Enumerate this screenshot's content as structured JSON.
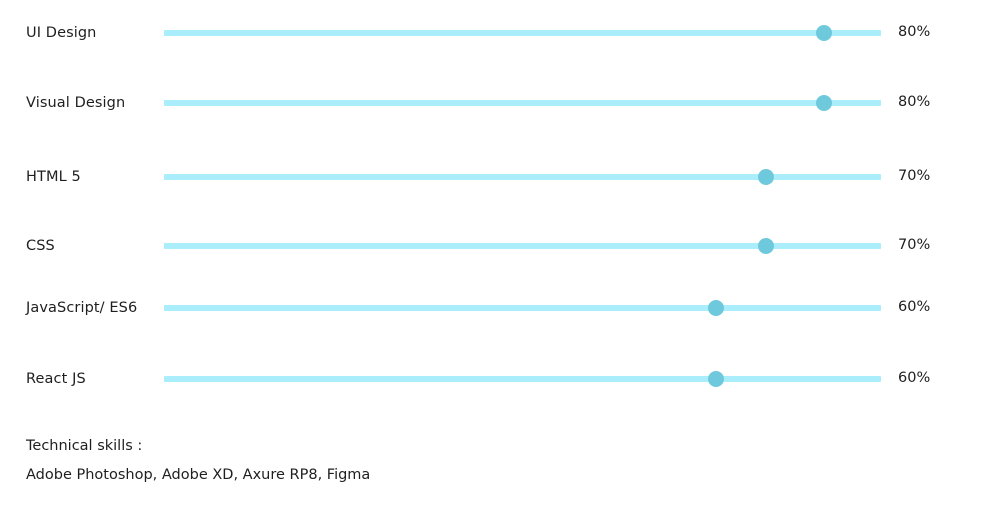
{
  "skills": [
    {
      "label": "UI Design",
      "percent_text": "80%",
      "level": 0.92
    },
    {
      "label": "Visual Design",
      "percent_text": "80%",
      "level": 0.92
    },
    {
      "label": "HTML 5",
      "percent_text": "70%",
      "level": 0.84
    },
    {
      "label": "CSS",
      "percent_text": "70%",
      "level": 0.84
    },
    {
      "label": "JavaScript/ ES6",
      "percent_text": "60%",
      "level": 0.77
    },
    {
      "label": "React JS",
      "percent_text": "60%",
      "level": 0.77
    }
  ],
  "technical": {
    "heading": "Technical skills :",
    "list": "Adobe Photoshop, Adobe XD, Axure RP8, Figma"
  },
  "colors": {
    "track": "#a9eefa",
    "handle": "#6fc9dc",
    "text": "#1f1f1f"
  }
}
